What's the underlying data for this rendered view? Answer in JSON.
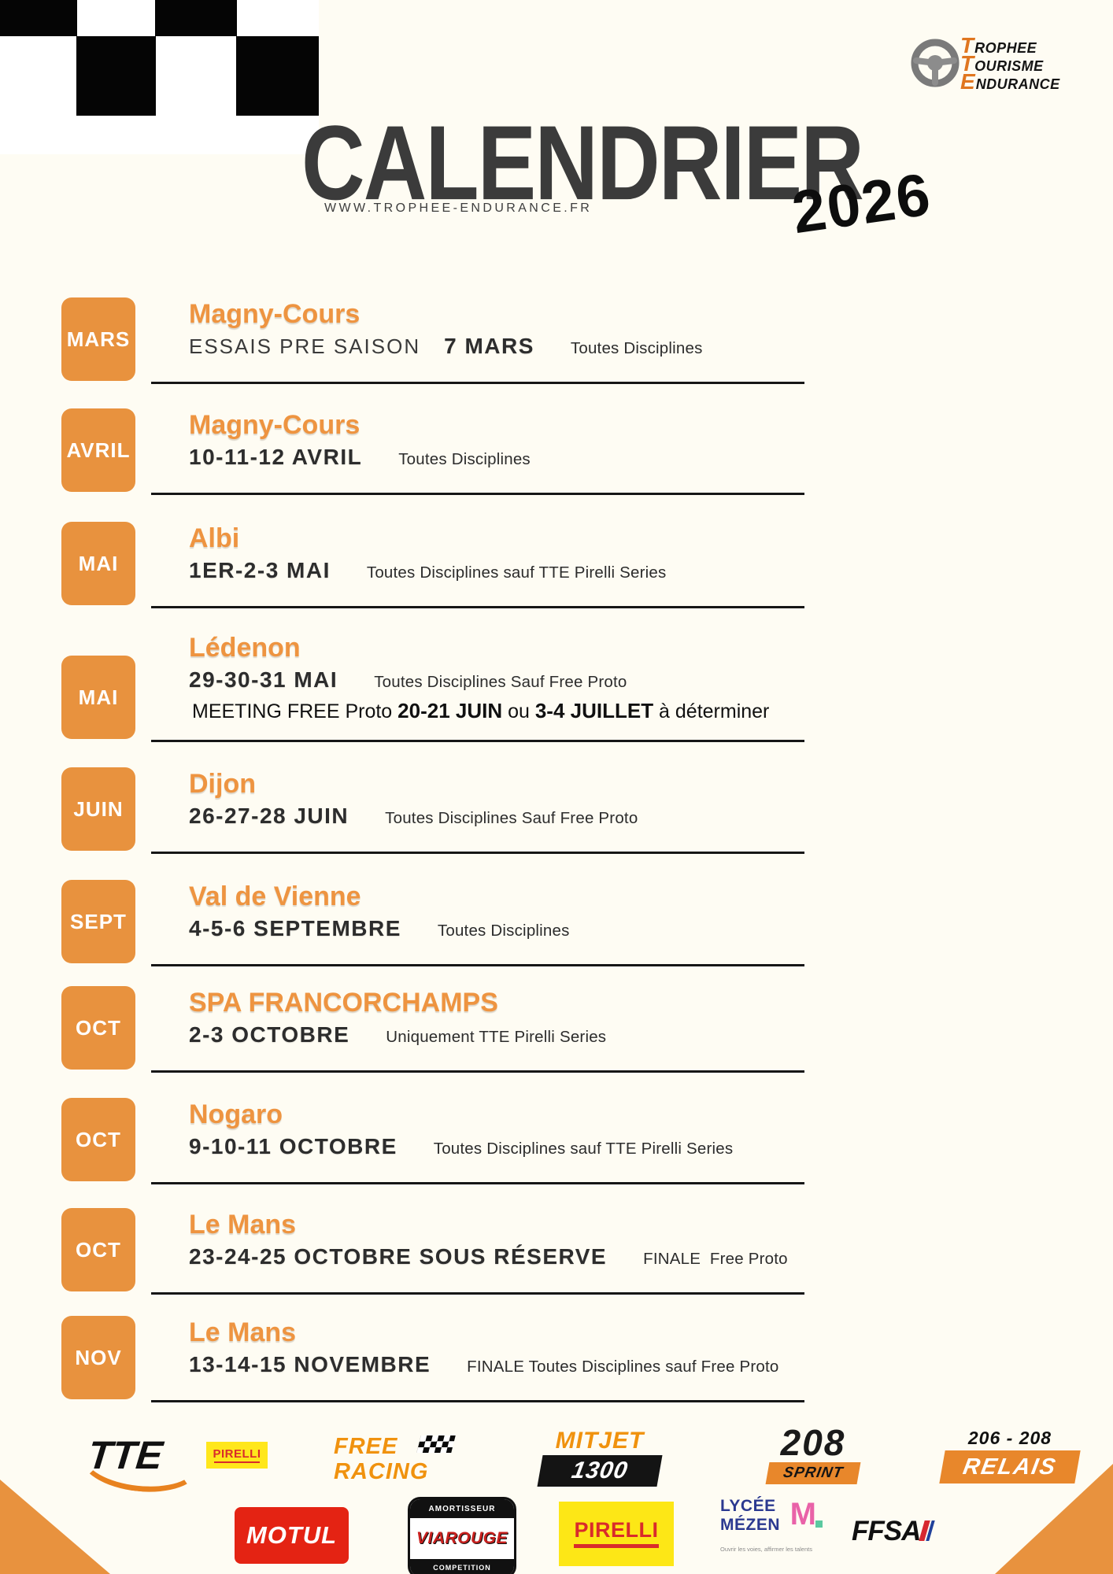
{
  "colors": {
    "background": "#FEFCF3",
    "accent_orange": "#E8923E",
    "venue_orange": "#EE9440",
    "title_dark": "#3B3B3B",
    "line_black": "#161616"
  },
  "header": {
    "title": "CALENDRIER",
    "year": "2026",
    "website": "WWW.TROPHEE-ENDURANCE.FR"
  },
  "tte_logo": {
    "lines": [
      {
        "initial": "T",
        "rest": "ROPHEE"
      },
      {
        "initial": "T",
        "rest": "OURISME"
      },
      {
        "initial": "E",
        "rest": "NDURANCE"
      }
    ]
  },
  "events": [
    {
      "month": "MARS",
      "venue": "Magny-Cours",
      "pre": "ESSAIS PRE SAISON",
      "date": "7 MARS",
      "note": "Toutes Disciplines"
    },
    {
      "month": "AVRIL",
      "venue": "Magny-Cours",
      "date": "10-11-12 AVRIL",
      "note": "Toutes Disciplines"
    },
    {
      "month": "MAI",
      "venue": "Albi",
      "date": "1ER-2-3 MAI",
      "note": "Toutes Disciplines sauf TTE Pirelli Series"
    },
    {
      "month": "MAI",
      "venue": "Lédenon",
      "date": "29-30-31 MAI",
      "note": "Toutes Disciplines Sauf Free Proto",
      "extra": [
        {
          "text": "MEETING FREE Proto ",
          "bold": false
        },
        {
          "text": "20-21 JUIN",
          "bold": true
        },
        {
          "text": " ou ",
          "bold": false
        },
        {
          "text": "3-4 JUILLET",
          "bold": true
        },
        {
          "text": " à déterminer",
          "bold": false
        }
      ]
    },
    {
      "month": "JUIN",
      "venue": "Dijon",
      "date": "26-27-28 JUIN",
      "note": "Toutes Disciplines Sauf Free Proto"
    },
    {
      "month": "SEPT",
      "venue": "Val de Vienne",
      "date": "4-5-6 SEPTEMBRE",
      "note": "Toutes Disciplines"
    },
    {
      "month": "OCT",
      "venue": "SPA FRANCORCHAMPS",
      "date": "2-3 OCTOBRE",
      "note": "Uniquement TTE Pirelli Series"
    },
    {
      "month": "OCT",
      "venue": "Nogaro",
      "date": "9-10-11 OCTOBRE",
      "note": "Toutes Disciplines sauf TTE Pirelli Series"
    },
    {
      "month": "OCT",
      "venue": "Le Mans",
      "date": "23-24-25 OCTOBRE SOUS RÉSERVE",
      "note": "FINALE  Free Proto"
    },
    {
      "month": "NOV",
      "venue": "Le Mans",
      "date": "13-14-15 NOVEMBRE",
      "note": "FINALE Toutes Disciplines sauf Free Proto"
    }
  ],
  "sponsors": {
    "row1": [
      {
        "name": "tte-script",
        "text": "TTE"
      },
      {
        "name": "pirelli-small",
        "text": "PIRELLI"
      },
      {
        "name": "free-racing",
        "line1": "FREE",
        "line2": "RACING"
      },
      {
        "name": "mitjet-1300",
        "line1": "MITJET",
        "line2": "1300"
      },
      {
        "name": "208-sprint",
        "line1": "208",
        "line2": "SPRINT"
      },
      {
        "name": "206-208-relais",
        "line1": "206 - 208",
        "line2": "RELAIS"
      }
    ],
    "row2": [
      {
        "name": "motul",
        "text": "MOTUL"
      },
      {
        "name": "viarouge",
        "top": "AMORTISSEUR",
        "mid": "VIAROUGE",
        "bottom": "COMPETITION"
      },
      {
        "name": "pirelli",
        "text": "PIRELLI"
      },
      {
        "name": "lycee-mezen",
        "line1": "LYCÉE",
        "line2": "MÉZEN",
        "m": "M",
        "tagline": "Ouvrir les voies, affirmer les talents"
      },
      {
        "name": "ffsa",
        "text": "FFSA"
      }
    ]
  }
}
